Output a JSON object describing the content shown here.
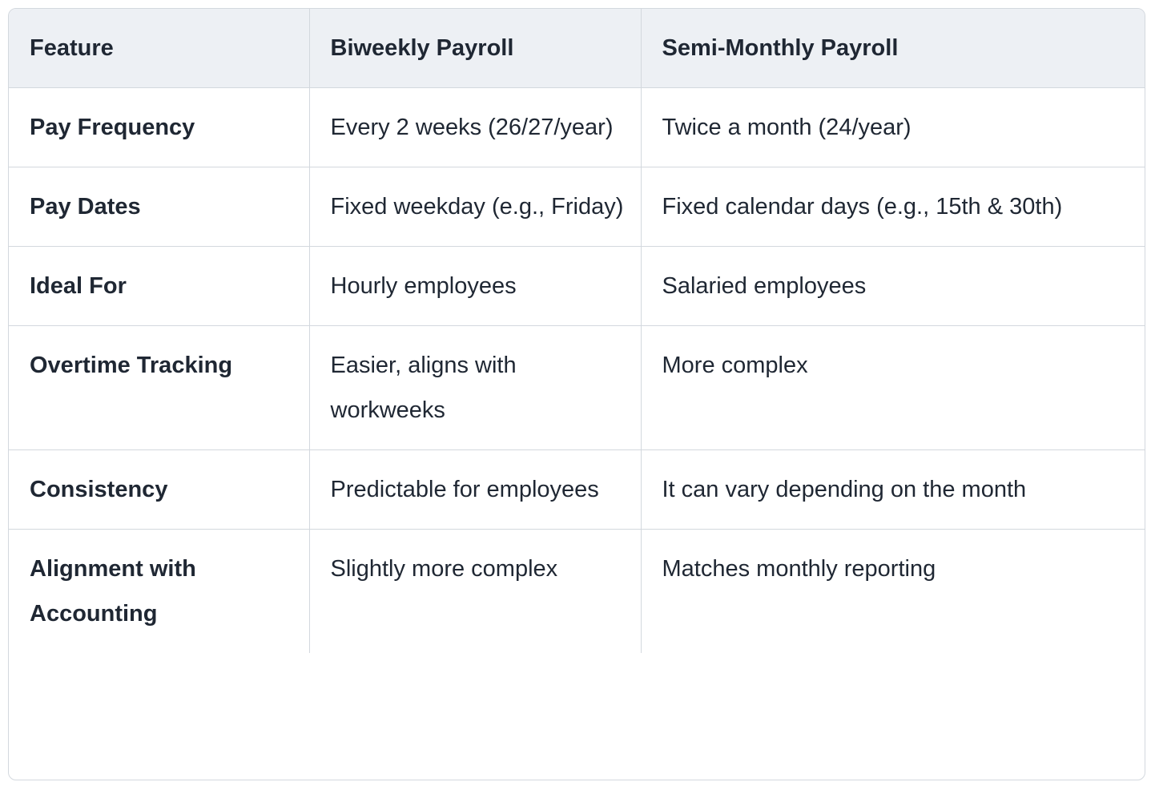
{
  "table": {
    "header": [
      "Feature",
      "Biweekly Payroll",
      "Semi-Monthly Payroll"
    ],
    "rows": [
      [
        "Pay Frequency",
        "Every 2 weeks (26/27/year)",
        "Twice a month (24/year)"
      ],
      [
        "Pay Dates",
        "Fixed weekday (e.g., Friday)",
        "Fixed calendar days (e.g., 15th & 30th)"
      ],
      [
        "Ideal For",
        "Hourly employees",
        "Salaried employees"
      ],
      [
        "Overtime Tracking",
        "Easier, aligns with workweeks",
        "More complex"
      ],
      [
        "Consistency",
        "Predictable for employees",
        "It can vary depending on the month"
      ],
      [
        "Alignment with Accounting",
        "Slightly more complex",
        "Matches monthly reporting"
      ]
    ]
  }
}
